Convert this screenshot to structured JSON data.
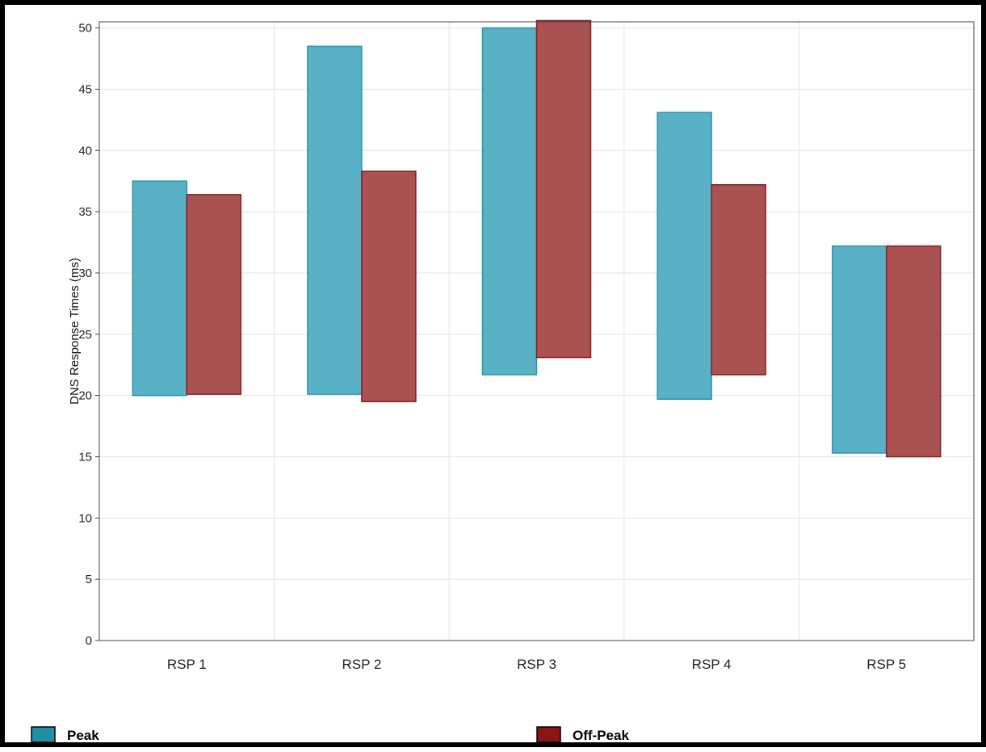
{
  "chart_data": {
    "type": "bar",
    "subtype": "floating-range",
    "ylabel": "DNS Response Times (ms)",
    "ylim": [
      0,
      50.5
    ],
    "yticks": [
      0,
      5,
      10,
      15,
      20,
      25,
      30,
      35,
      40,
      45,
      50
    ],
    "grid": true,
    "legend_position": "bottom",
    "categories": [
      "RSP 1",
      "RSP 2",
      "RSP 3",
      "RSP 4",
      "RSP 5"
    ],
    "series": [
      {
        "name": "Peak",
        "color": "#59b1c6",
        "edge_color": "#2c94ad",
        "legend_color": "#1f8fa8",
        "low": [
          20.0,
          20.1,
          21.7,
          19.7,
          15.3
        ],
        "high": [
          37.5,
          48.5,
          50.0,
          43.1,
          32.2
        ]
      },
      {
        "name": "Off-Peak",
        "color": "#a85252",
        "edge_color": "#8c1c1c",
        "legend_color": "#8b1414",
        "low": [
          20.1,
          19.5,
          23.1,
          21.7,
          15.0
        ],
        "high": [
          36.4,
          38.3,
          50.6,
          37.2,
          32.2
        ]
      }
    ]
  }
}
